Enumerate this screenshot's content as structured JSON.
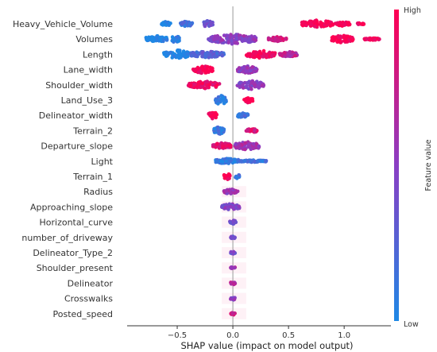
{
  "chart_data": {
    "type": "scatter",
    "subtype": "beeswarm",
    "features": [
      {
        "name": "Heavy_Vehicle_Volume",
        "groups": [
          [
            -0.56,
            -0.64,
            0.05,
            0.0
          ],
          [
            -0.47,
            -0.36,
            0.05,
            0.15
          ],
          [
            -0.28,
            -0.18,
            0.06,
            0.35
          ],
          [
            0.62,
            0.9,
            0.07,
            1.0
          ],
          [
            0.92,
            1.05,
            0.04,
            0.95
          ],
          [
            1.12,
            1.18,
            0.02,
            0.9
          ]
        ]
      },
      {
        "name": "Volumes",
        "groups": [
          [
            -0.78,
            -0.58,
            0.06,
            0.0
          ],
          [
            -0.55,
            -0.48,
            0.07,
            0.05
          ],
          [
            -0.22,
            0.22,
            0.09,
            0.5
          ],
          [
            0.32,
            0.48,
            0.04,
            0.8
          ],
          [
            0.88,
            1.08,
            0.07,
            1.0
          ],
          [
            1.18,
            1.32,
            0.02,
            0.95
          ]
        ]
      },
      {
        "name": "Length",
        "groups": [
          [
            -0.62,
            -0.38,
            0.08,
            0.0
          ],
          [
            -0.38,
            -0.08,
            0.06,
            0.25
          ],
          [
            0.12,
            0.38,
            0.07,
            0.95
          ],
          [
            0.42,
            0.58,
            0.05,
            0.7
          ]
        ]
      },
      {
        "name": "Lane_width",
        "groups": [
          [
            -0.36,
            -0.18,
            0.07,
            1.0
          ],
          [
            0.04,
            0.22,
            0.07,
            0.55
          ]
        ]
      },
      {
        "name": "Shoulder_width",
        "groups": [
          [
            -0.4,
            -0.12,
            0.07,
            0.9
          ],
          [
            0.04,
            0.28,
            0.08,
            0.5
          ]
        ]
      },
      {
        "name": "Land_Use_3",
        "groups": [
          [
            -0.16,
            -0.06,
            0.09,
            0.1
          ],
          [
            0.1,
            0.18,
            0.05,
            1.0
          ]
        ]
      },
      {
        "name": "Delineator_width",
        "groups": [
          [
            -0.22,
            -0.14,
            0.07,
            1.0
          ],
          [
            0.04,
            0.14,
            0.05,
            0.15
          ]
        ]
      },
      {
        "name": "Terrain_2",
        "groups": [
          [
            -0.17,
            -0.08,
            0.07,
            0.1
          ],
          [
            0.12,
            0.22,
            0.04,
            0.85
          ]
        ]
      },
      {
        "name": "Departure_slope",
        "groups": [
          [
            -0.18,
            -0.02,
            0.06,
            0.85
          ],
          [
            0.02,
            0.24,
            0.08,
            0.6
          ]
        ]
      },
      {
        "name": "Light",
        "groups": [
          [
            -0.16,
            0.06,
            0.05,
            0.1
          ],
          [
            0.06,
            0.3,
            0.02,
            0.15
          ]
        ]
      },
      {
        "name": "Terrain_1",
        "groups": [
          [
            -0.08,
            -0.02,
            0.06,
            1.0
          ],
          [
            0.02,
            0.06,
            0.04,
            0.1
          ]
        ]
      },
      {
        "name": "Radius",
        "groups": [
          [
            -0.08,
            0.05,
            0.05,
            0.55
          ]
        ]
      },
      {
        "name": "Approaching_slope",
        "groups": [
          [
            -0.1,
            0.06,
            0.06,
            0.45
          ]
        ]
      },
      {
        "name": "Horizontal_curve",
        "groups": [
          [
            -0.03,
            0.03,
            0.04,
            0.4
          ]
        ]
      },
      {
        "name": "number_of_driveway",
        "groups": [
          [
            -0.02,
            0.02,
            0.03,
            0.35
          ]
        ]
      },
      {
        "name": "Delineator_Type_2",
        "groups": [
          [
            -0.02,
            0.02,
            0.03,
            0.4
          ]
        ]
      },
      {
        "name": "Shoulder_present",
        "groups": [
          [
            -0.02,
            0.02,
            0.03,
            0.6
          ]
        ]
      },
      {
        "name": "Delineator",
        "groups": [
          [
            -0.02,
            0.02,
            0.03,
            0.7
          ]
        ]
      },
      {
        "name": "Crosswalks",
        "groups": [
          [
            -0.02,
            0.02,
            0.03,
            0.5
          ]
        ]
      },
      {
        "name": "Posted_speed",
        "groups": [
          [
            -0.02,
            0.02,
            0.03,
            0.75
          ]
        ]
      }
    ],
    "group_fields": [
      "x_from",
      "x_to",
      "vertical_spread",
      "feature_value_0_to_1"
    ],
    "xlabel": "SHAP value (impact on model output)",
    "xlim": [
      -0.95,
      1.42
    ],
    "xticks": [
      -0.5,
      0.0,
      0.5,
      1.0
    ],
    "xtick_labels": [
      "−0.5",
      "0.0",
      "0.5",
      "1.0"
    ],
    "zero_line": true,
    "colorbar": {
      "label": "Feature value",
      "high_label": "High",
      "low_label": "Low",
      "low_color": "#1e88e5",
      "high_color": "#ff0052"
    }
  }
}
